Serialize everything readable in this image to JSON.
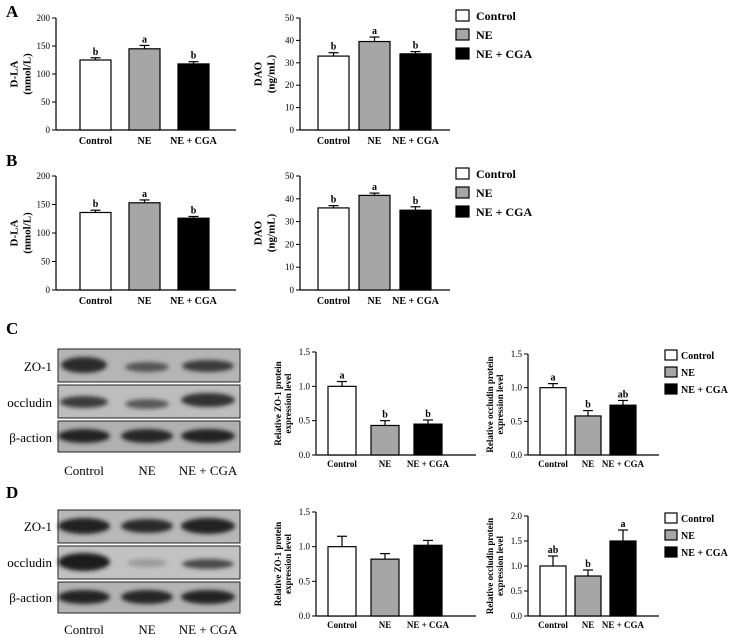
{
  "panels": [
    "A",
    "B",
    "C",
    "D"
  ],
  "legend": {
    "entries": [
      "Control",
      "NE",
      "NE + CGA"
    ],
    "colors": [
      "#ffffff",
      "#a6a6a6",
      "#000000"
    ]
  },
  "blots": {
    "C": {
      "rows": [
        "ZO-1",
        "occludin",
        "β-action"
      ],
      "lanes": [
        "Control",
        "NE",
        "NE + CGA"
      ]
    },
    "D": {
      "rows": [
        "ZO-1",
        "occludin",
        "β-action"
      ],
      "lanes": [
        "Control",
        "NE",
        "NE + CGA"
      ]
    }
  },
  "chart_data": [
    {
      "id": "A-dla",
      "panel": "A",
      "type": "bar",
      "categories": [
        "Control",
        "NE",
        "NE + CGA"
      ],
      "values": [
        125,
        145,
        118
      ],
      "errors": [
        4,
        6,
        4
      ],
      "letters": [
        "b",
        "a",
        "b"
      ],
      "ylabel": [
        "D-LA",
        "(nmol/L)"
      ],
      "ylim": [
        0,
        200
      ],
      "yticks": [
        0,
        50,
        100,
        150,
        200
      ]
    },
    {
      "id": "A-dao",
      "panel": "A",
      "type": "bar",
      "categories": [
        "Control",
        "NE",
        "NE + CGA"
      ],
      "values": [
        33,
        39.5,
        34
      ],
      "errors": [
        1.5,
        2,
        1
      ],
      "letters": [
        "b",
        "a",
        "b"
      ],
      "ylabel": [
        "DAO",
        "(ng/mL)"
      ],
      "ylim": [
        0,
        50
      ],
      "yticks": [
        0,
        10,
        20,
        30,
        40,
        50
      ]
    },
    {
      "id": "B-dla",
      "panel": "B",
      "type": "bar",
      "categories": [
        "Control",
        "NE",
        "NE + CGA"
      ],
      "values": [
        136,
        153,
        126
      ],
      "errors": [
        4,
        5,
        3
      ],
      "letters": [
        "b",
        "a",
        "b"
      ],
      "ylabel": [
        "D-LA",
        "(nmol/L)"
      ],
      "ylim": [
        0,
        200
      ],
      "yticks": [
        0,
        50,
        100,
        150,
        200
      ]
    },
    {
      "id": "B-dao",
      "panel": "B",
      "type": "bar",
      "categories": [
        "Control",
        "NE",
        "NE + CGA"
      ],
      "values": [
        36,
        41.5,
        35
      ],
      "errors": [
        1,
        1,
        1.5
      ],
      "letters": [
        "b",
        "a",
        "b"
      ],
      "ylabel": [
        "DAO",
        "(ng/mL)"
      ],
      "ylim": [
        0,
        50
      ],
      "yticks": [
        0,
        10,
        20,
        30,
        40,
        50
      ]
    },
    {
      "id": "C-zo1",
      "panel": "C",
      "type": "bar",
      "categories": [
        "Control",
        "NE",
        "NE + CGA"
      ],
      "values": [
        1.0,
        0.43,
        0.45
      ],
      "errors": [
        0.07,
        0.07,
        0.06
      ],
      "letters": [
        "a",
        "b",
        "b"
      ],
      "ylabel": [
        "Relative ZO-1 protein",
        "expression level"
      ],
      "ylim": [
        0,
        1.5
      ],
      "yticks": [
        "0.0",
        "0.5",
        "1.0",
        "1.5"
      ]
    },
    {
      "id": "C-occludin",
      "panel": "C",
      "type": "bar",
      "categories": [
        "Control",
        "NE",
        "NE + CGA"
      ],
      "values": [
        1.0,
        0.58,
        0.74
      ],
      "errors": [
        0.06,
        0.08,
        0.07
      ],
      "letters": [
        "a",
        "b",
        "ab"
      ],
      "ylabel": [
        "Relative occludin protein",
        "expression level"
      ],
      "ylim": [
        0,
        1.5
      ],
      "yticks": [
        "0.0",
        "0.5",
        "1.0",
        "1.5"
      ]
    },
    {
      "id": "D-zo1",
      "panel": "D",
      "type": "bar",
      "categories": [
        "Control",
        "NE",
        "NE + CGA"
      ],
      "values": [
        1.0,
        0.82,
        1.02
      ],
      "errors": [
        0.15,
        0.08,
        0.07
      ],
      "letters": [
        "",
        "",
        ""
      ],
      "ylabel": [
        "Relative ZO-1 protein",
        "expression level"
      ],
      "ylim": [
        0,
        1.5
      ],
      "yticks": [
        "0.0",
        "0.5",
        "1.0",
        "1.5"
      ]
    },
    {
      "id": "D-occludin",
      "panel": "D",
      "type": "bar",
      "categories": [
        "Control",
        "NE",
        "NE + CGA"
      ],
      "values": [
        1.0,
        0.8,
        1.5
      ],
      "errors": [
        0.2,
        0.12,
        0.22
      ],
      "letters": [
        "ab",
        "b",
        "a"
      ],
      "ylabel": [
        "Relative occludin protein",
        "expression level"
      ],
      "ylim": [
        0,
        2.0
      ],
      "yticks": [
        "0.0",
        "0.5",
        "1.0",
        "1.5",
        "2.0"
      ]
    }
  ]
}
